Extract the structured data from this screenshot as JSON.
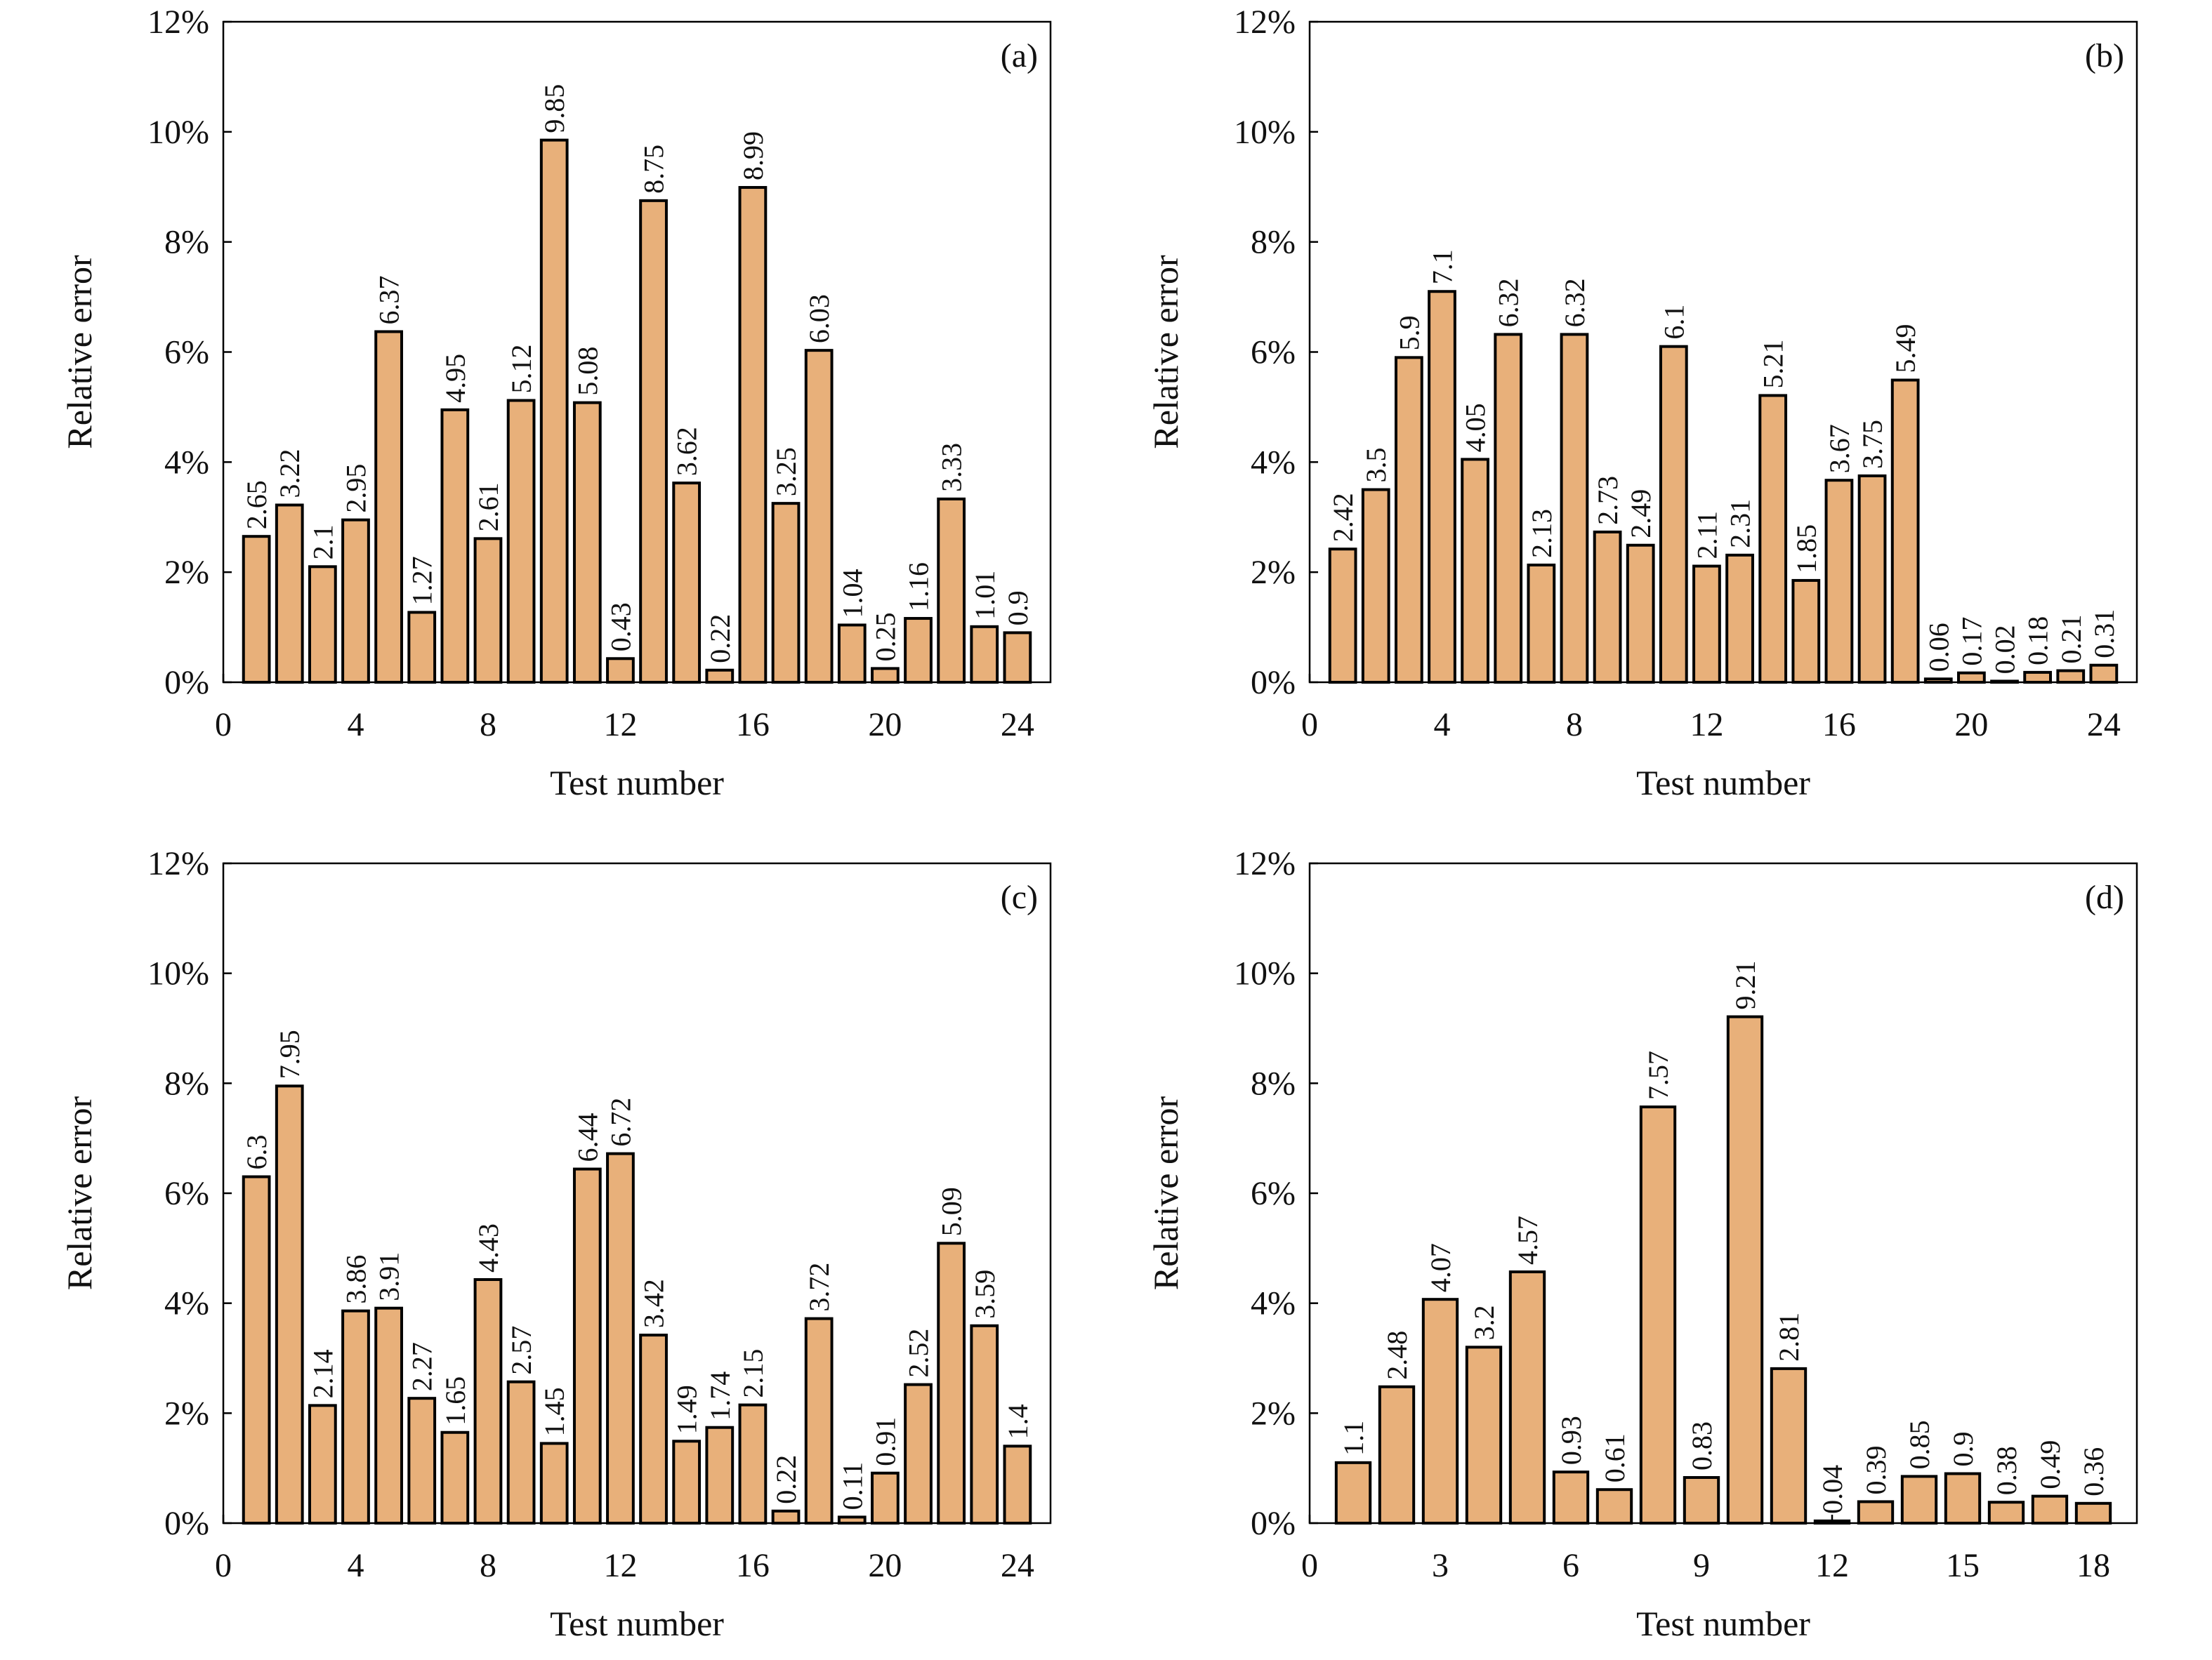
{
  "colors": {
    "bar_fill": "#e8b07a",
    "bar_stroke": "#000000",
    "axis": "#000000"
  },
  "chart_data": [
    {
      "type": "bar",
      "panel": "(a)",
      "xlabel": "Test number",
      "ylabel": "Relative error",
      "xlim": [
        0,
        25
      ],
      "ylim": [
        0,
        12
      ],
      "xticks": [
        0,
        4,
        8,
        12,
        16,
        20,
        24
      ],
      "yticks": [
        0,
        2,
        4,
        6,
        8,
        10,
        12
      ],
      "ytick_labels": [
        "0%",
        "2%",
        "4%",
        "6%",
        "8%",
        "10%",
        "12%"
      ],
      "x": [
        1,
        2,
        3,
        4,
        5,
        6,
        7,
        8,
        9,
        10,
        11,
        12,
        13,
        14,
        15,
        16,
        17,
        18,
        19,
        20,
        21,
        22,
        23,
        24
      ],
      "values": [
        2.65,
        3.22,
        2.1,
        2.95,
        6.37,
        1.27,
        4.95,
        2.61,
        5.12,
        9.85,
        5.08,
        0.43,
        8.75,
        3.62,
        0.22,
        8.99,
        3.25,
        6.03,
        1.04,
        0.25,
        1.16,
        3.33,
        1.01,
        0.9
      ],
      "labels": [
        "2.65",
        "3.22",
        "2.1",
        "2.95",
        "6.37",
        "1.27",
        "4.95",
        "2.61",
        "5.12",
        "9.85",
        "5.08",
        "0.43",
        "8.75",
        "3.62",
        "0.22",
        "8.99",
        "3.25",
        "6.03",
        "1.04",
        "0.25",
        "1.16",
        "3.33",
        "1.01",
        "0.9"
      ]
    },
    {
      "type": "bar",
      "panel": "(b)",
      "xlabel": "Test number",
      "ylabel": "Relative error",
      "xlim": [
        0,
        25
      ],
      "ylim": [
        0,
        12
      ],
      "xticks": [
        0,
        4,
        8,
        12,
        16,
        20,
        24
      ],
      "yticks": [
        0,
        2,
        4,
        6,
        8,
        10,
        12
      ],
      "ytick_labels": [
        "0%",
        "2%",
        "4%",
        "6%",
        "8%",
        "10%",
        "12%"
      ],
      "x": [
        1,
        2,
        3,
        4,
        5,
        6,
        7,
        8,
        9,
        10,
        11,
        12,
        13,
        14,
        15,
        16,
        17,
        18,
        19,
        20,
        21,
        22,
        23,
        24
      ],
      "values": [
        2.42,
        3.5,
        5.9,
        7.1,
        4.05,
        6.32,
        2.13,
        6.32,
        2.73,
        2.49,
        6.1,
        2.11,
        2.31,
        5.21,
        1.85,
        3.67,
        3.75,
        5.49,
        0.06,
        0.17,
        0.02,
        0.18,
        0.21,
        0.31
      ],
      "labels": [
        "2.42",
        "3.5",
        "5.9",
        "7.1",
        "4.05",
        "6.32",
        "2.13",
        "6.32",
        "2.73",
        "2.49",
        "6.1",
        "2.11",
        "2.31",
        "5.21",
        "1.85",
        "3.67",
        "3.75",
        "5.49",
        "0.06",
        "0.17",
        "0.02",
        "0.18",
        "0.21",
        "0.31"
      ]
    },
    {
      "type": "bar",
      "panel": "(c)",
      "xlabel": "Test number",
      "ylabel": "Relative error",
      "xlim": [
        0,
        25
      ],
      "ylim": [
        0,
        12
      ],
      "xticks": [
        0,
        4,
        8,
        12,
        16,
        20,
        24
      ],
      "yticks": [
        0,
        2,
        4,
        6,
        8,
        10,
        12
      ],
      "ytick_labels": [
        "0%",
        "2%",
        "4%",
        "6%",
        "8%",
        "10%",
        "12%"
      ],
      "x": [
        1,
        2,
        3,
        4,
        5,
        6,
        7,
        8,
        9,
        10,
        11,
        12,
        13,
        14,
        15,
        16,
        17,
        18,
        19,
        20,
        21,
        22,
        23,
        24
      ],
      "values": [
        6.3,
        7.95,
        2.14,
        3.86,
        3.91,
        2.27,
        1.65,
        4.43,
        2.57,
        1.45,
        6.44,
        6.72,
        3.42,
        1.49,
        1.74,
        2.15,
        0.22,
        3.72,
        0.11,
        0.91,
        2.52,
        5.09,
        3.59,
        1.4
      ],
      "labels": [
        "6.3",
        "7.95",
        "2.14",
        "3.86",
        "3.91",
        "2.27",
        "1.65",
        "4.43",
        "2.57",
        "1.45",
        "6.44",
        "6.72",
        "3.42",
        "1.49",
        "1.74",
        "2.15",
        "0.22",
        "3.72",
        "0.11",
        "0.91",
        "2.52",
        "5.09",
        "3.59",
        "1.4"
      ]
    },
    {
      "type": "bar",
      "panel": "(d)",
      "xlabel": "Test number",
      "ylabel": "Relative error",
      "xlim": [
        0,
        19
      ],
      "ylim": [
        0,
        12
      ],
      "xticks": [
        0,
        3,
        6,
        9,
        12,
        15,
        18
      ],
      "yticks": [
        0,
        2,
        4,
        6,
        8,
        10,
        12
      ],
      "ytick_labels": [
        "0%",
        "2%",
        "4%",
        "6%",
        "8%",
        "10%",
        "12%"
      ],
      "x": [
        1,
        2,
        3,
        4,
        5,
        6,
        7,
        8,
        9,
        10,
        11,
        12,
        13,
        14,
        15,
        16,
        17,
        18
      ],
      "values": [
        1.1,
        2.48,
        4.07,
        3.2,
        4.57,
        0.93,
        0.61,
        7.57,
        0.83,
        9.21,
        2.81,
        0.04,
        0.39,
        0.85,
        0.9,
        0.38,
        0.49,
        0.36
      ],
      "labels": [
        "1.1",
        "2.48",
        "4.07",
        "3.2",
        "4.57",
        "0.93",
        "0.61",
        "7.57",
        "0.83",
        "9.21",
        "2.81",
        "0.04",
        "0.39",
        "0.85",
        "0.9",
        "0.38",
        "0.49",
        "0.36"
      ]
    }
  ]
}
